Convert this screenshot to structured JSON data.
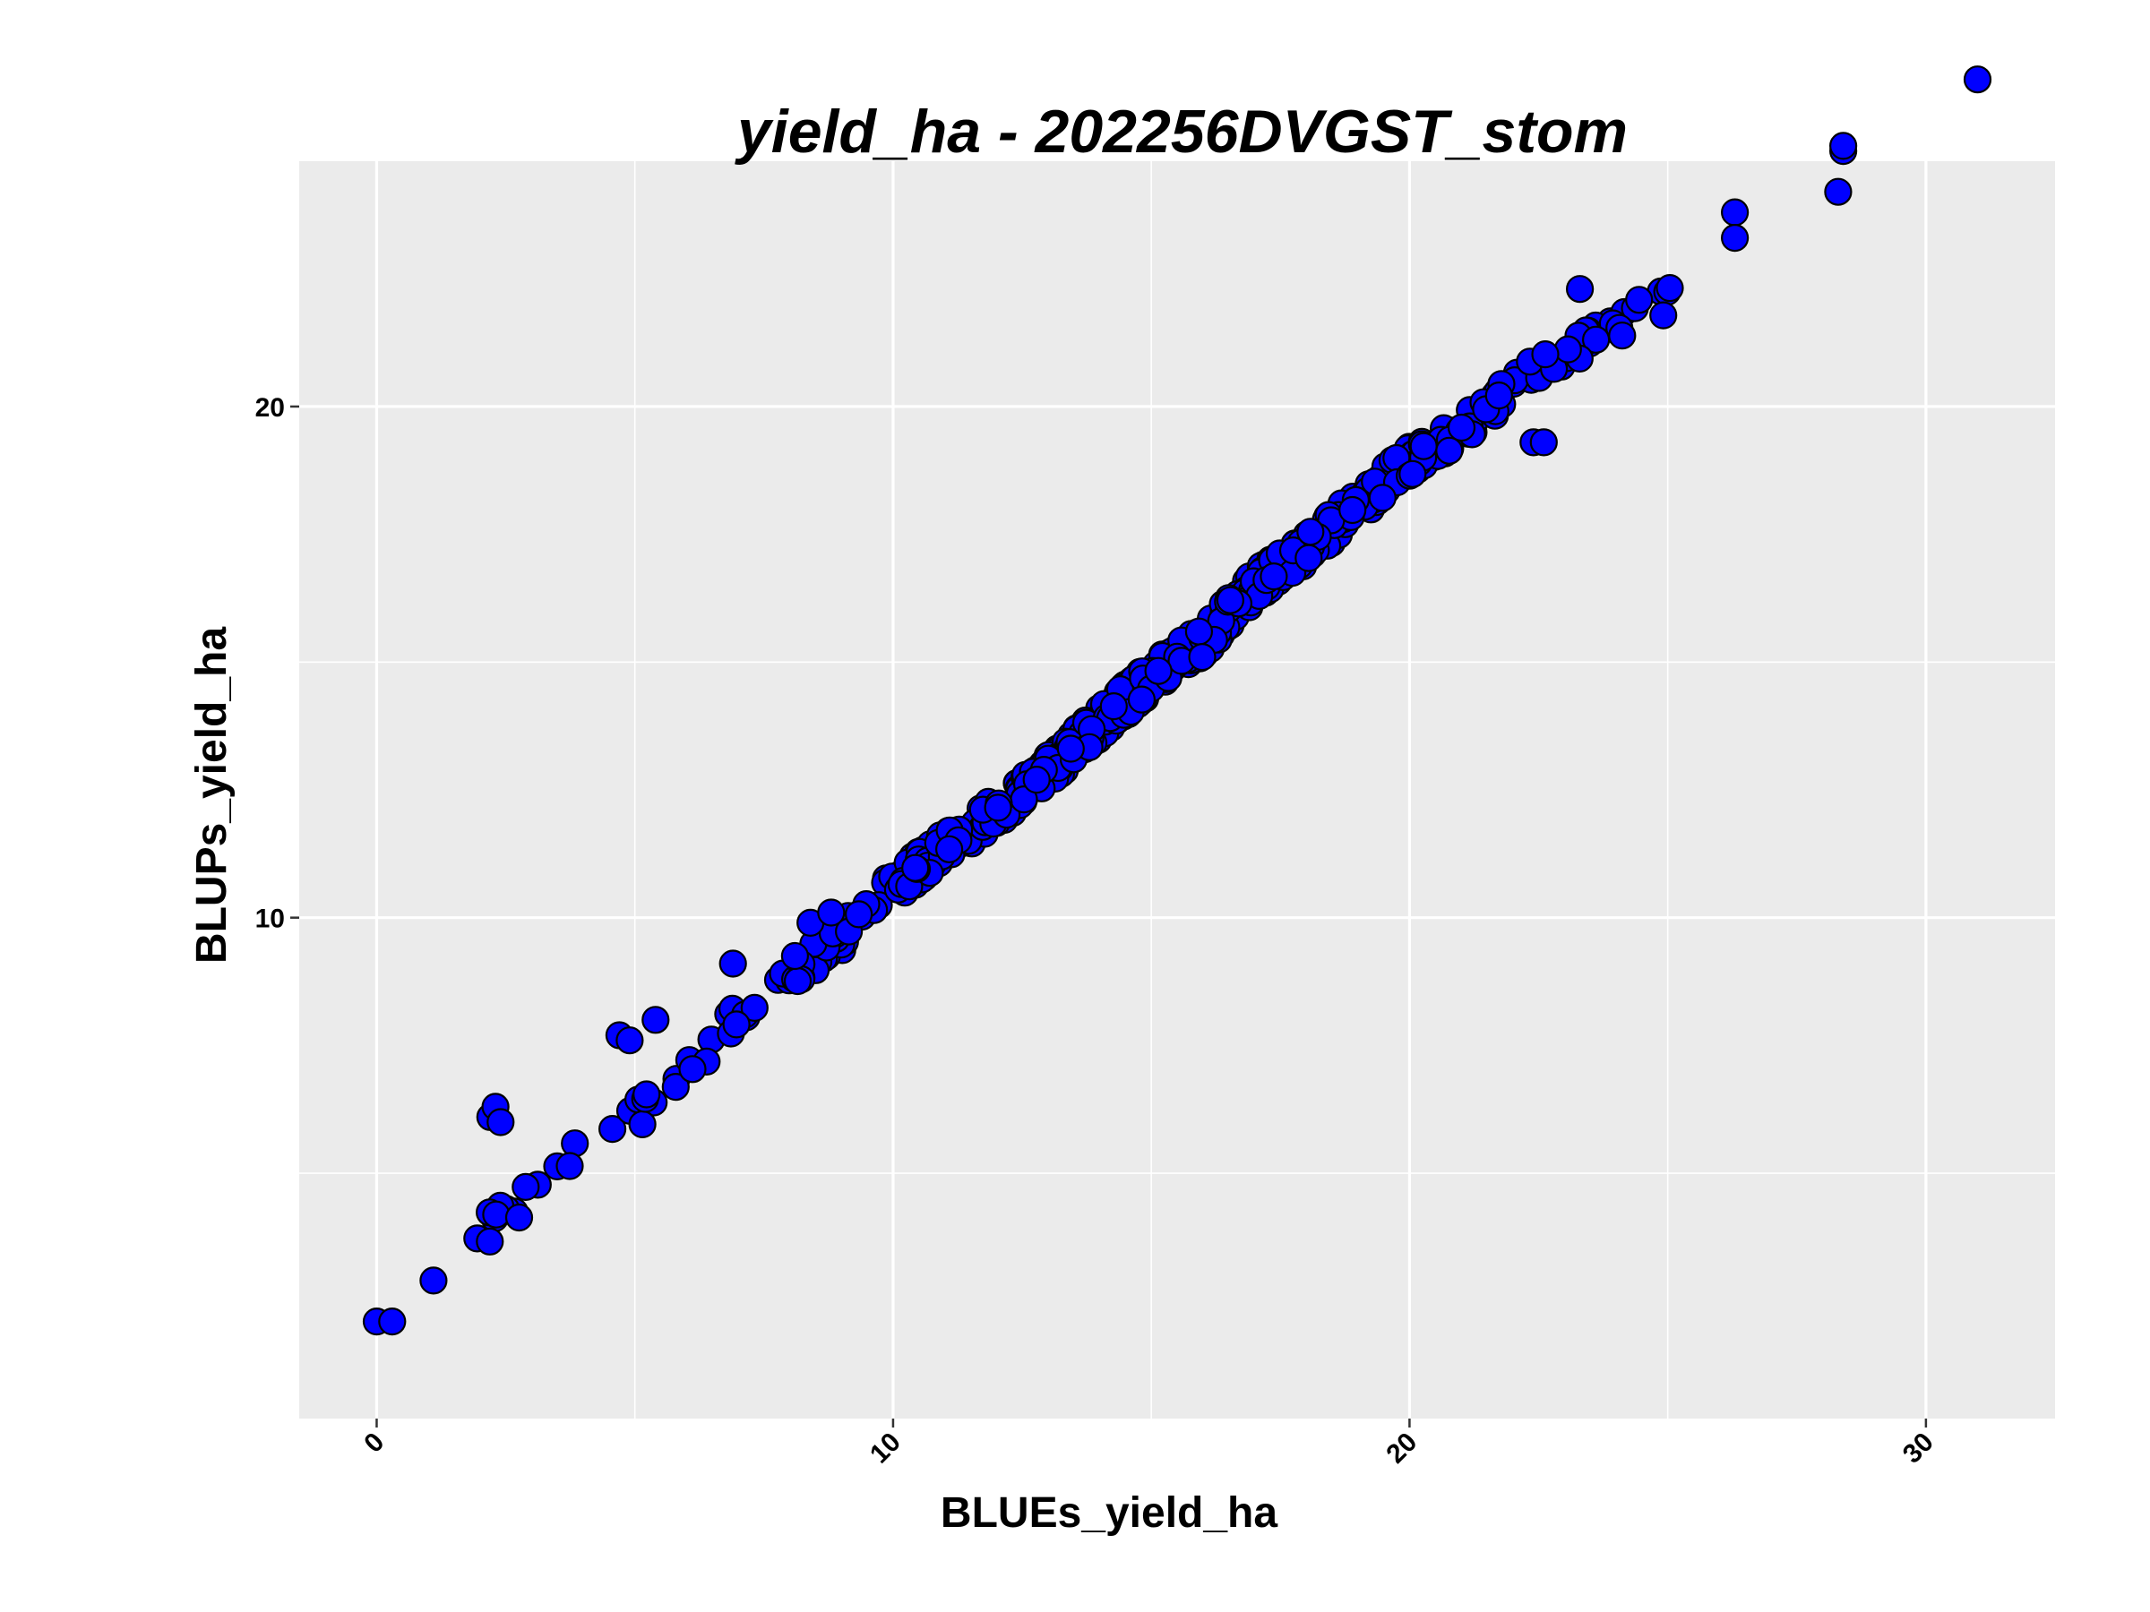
{
  "chart_data": {
    "type": "scatter",
    "title": "yield_ha - 202256DVGST_stom",
    "xlabel": "BLUEs_yield_ha",
    "ylabel": "BLUPs_yield_ha",
    "xlim": [
      -1.5,
      32.5
    ],
    "ylim": [
      0.2,
      24.8
    ],
    "x_ticks": [
      0,
      10,
      20,
      30
    ],
    "y_ticks": [
      10,
      20
    ],
    "x_minor_grid": [
      5,
      15,
      25
    ],
    "y_minor_grid": [
      5,
      15
    ],
    "grid": true,
    "legend": "none",
    "x_tick_rotation_deg": -45,
    "colors": {
      "panel_bg": "#ebebeb",
      "grid": "#ffffff",
      "point_fill": "#0000ff",
      "point_stroke": "#000000",
      "text": "#000000"
    },
    "series": [
      {
        "marker": "circle",
        "outliers": [
          {
            "x": 0.0,
            "y": 2.1
          },
          {
            "x": 0.3,
            "y": 2.1
          },
          {
            "x": 1.1,
            "y": 2.9
          },
          {
            "x": 2.2,
            "y": 6.1
          },
          {
            "x": 2.3,
            "y": 6.3
          },
          {
            "x": 2.4,
            "y": 6.0
          },
          {
            "x": 4.7,
            "y": 7.7
          },
          {
            "x": 4.9,
            "y": 7.6
          },
          {
            "x": 5.4,
            "y": 8.0
          },
          {
            "x": 6.9,
            "y": 9.1
          },
          {
            "x": 8.4,
            "y": 9.9
          },
          {
            "x": 8.8,
            "y": 10.1
          },
          {
            "x": 23.3,
            "y": 22.3
          },
          {
            "x": 22.4,
            "y": 19.3
          },
          {
            "x": 22.6,
            "y": 19.3
          },
          {
            "x": 26.3,
            "y": 23.8
          },
          {
            "x": 26.3,
            "y": 23.3
          },
          {
            "x": 28.3,
            "y": 24.2
          },
          {
            "x": 28.4,
            "y": 25.0
          },
          {
            "x": 28.4,
            "y": 25.1
          },
          {
            "x": 31.0,
            "y": 26.4
          }
        ],
        "trend": {
          "points": [
            [
              1.9,
              3.7
            ],
            [
              2.5,
              4.2
            ],
            [
              3.0,
              4.5
            ],
            [
              3.4,
              5.0
            ],
            [
              4.0,
              5.5
            ],
            [
              5.0,
              6.1
            ],
            [
              6.0,
              7.1
            ],
            [
              7.0,
              8.0
            ],
            [
              8.0,
              8.9
            ],
            [
              9.0,
              9.6
            ],
            [
              10.0,
              10.6
            ],
            [
              11.0,
              11.4
            ],
            [
              12.0,
              12.1
            ],
            [
              13.0,
              12.9
            ],
            [
              14.0,
              13.8
            ],
            [
              15.0,
              14.7
            ],
            [
              16.0,
              15.4
            ],
            [
              17.0,
              16.5
            ],
            [
              18.0,
              17.2
            ],
            [
              19.0,
              18.1
            ],
            [
              20.0,
              18.9
            ],
            [
              21.0,
              19.6
            ],
            [
              22.0,
              20.3
            ],
            [
              23.0,
              21.1
            ],
            [
              24.0,
              21.6
            ],
            [
              25.0,
              22.1
            ],
            [
              25.9,
              22.8
            ]
          ],
          "count": 620,
          "spread": 0.32
        }
      }
    ]
  }
}
